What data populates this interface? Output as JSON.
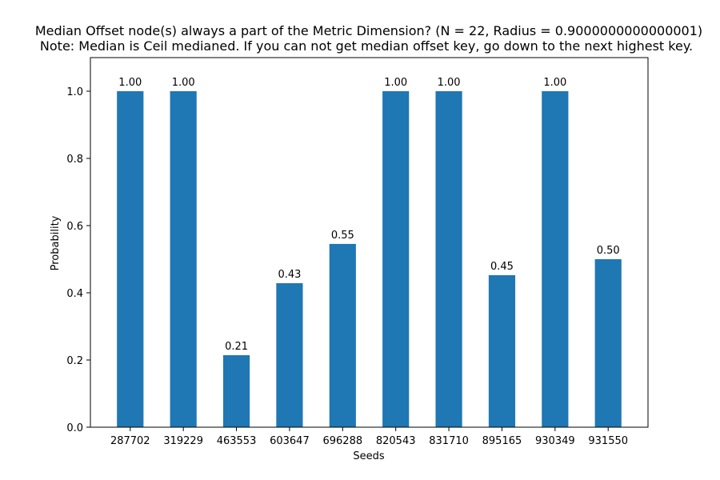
{
  "chart_data": {
    "type": "bar",
    "title": "Median Offset node(s) always a part of the Metric Dimension? (N = 22, Radius = 0.9000000000000001)",
    "subtitle": "Note: Median is Ceil medianed. If you can not get median offset key, go down to the next highest key.",
    "xlabel": "Seeds",
    "ylabel": "Probability",
    "categories": [
      "287702",
      "319229",
      "463553",
      "603647",
      "696288",
      "820543",
      "831710",
      "895165",
      "930349",
      "931550"
    ],
    "values": [
      1.0,
      1.0,
      0.2143,
      0.4286,
      0.5455,
      1.0,
      1.0,
      0.4524,
      1.0,
      0.5
    ],
    "data_labels": [
      "1.00",
      "1.00",
      "0.21",
      "0.43",
      "0.55",
      "1.00",
      "1.00",
      "0.45",
      "1.00",
      "0.50"
    ],
    "ylim": [
      0,
      1.1
    ],
    "yticks": [
      0.0,
      0.2,
      0.4,
      0.6,
      0.8,
      1.0
    ],
    "ytick_labels": [
      "0.0",
      "0.2",
      "0.4",
      "0.6",
      "0.8",
      "1.0"
    ],
    "grid": false,
    "bar_color": "#1f77b4"
  }
}
